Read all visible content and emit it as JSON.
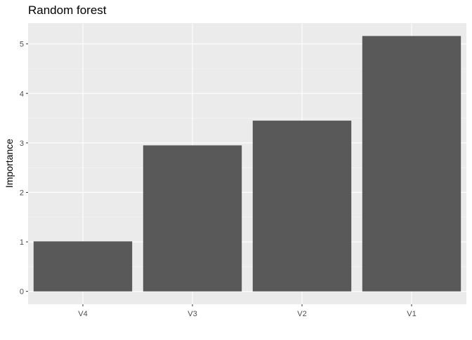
{
  "chart_data": {
    "type": "bar",
    "title": "Random forest",
    "xlabel": "",
    "ylabel": "Importance",
    "categories": [
      "V4",
      "V3",
      "V2",
      "V1"
    ],
    "values": [
      1.01,
      2.95,
      3.45,
      5.16
    ],
    "ylim": [
      -0.26,
      5.42
    ],
    "yticks": [
      0,
      1,
      2,
      3,
      4,
      5
    ],
    "grid": true,
    "legend": "none",
    "colors": {
      "bar": "#595959",
      "panel_background": "#EBEBEB",
      "grid_major": "#FFFFFF",
      "grid_minor": "#F5F5F5",
      "tick_text": "#4D4D4D",
      "tick_mark": "#333333"
    }
  }
}
